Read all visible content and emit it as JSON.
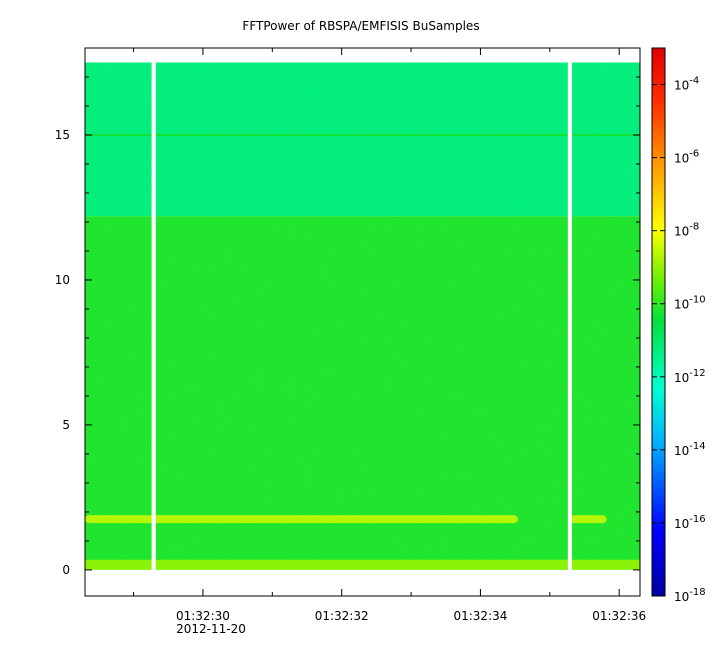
{
  "chart_data": {
    "type": "heatmap",
    "title": "FFTPower of RBSPA/EMFISIS  BuSamples",
    "xlabel": "",
    "ylabel": "",
    "x_tick_labels": [
      "01:32:30",
      "01:32:32",
      "01:32:34",
      "01:32:36"
    ],
    "x_date_label": "2012-11-20",
    "x_range_seconds": [
      "01:32:28.3",
      "01:32:36.3"
    ],
    "y_tick_labels": [
      "0",
      "5",
      "10",
      "15"
    ],
    "y_range": [
      -0.9,
      18.0
    ],
    "y_data_range": [
      0.0,
      17.5
    ],
    "colorbar": {
      "scale": "log",
      "range": [
        1e-18,
        0.001
      ],
      "tick_labels": [
        {
          "base": "10",
          "exp": "-4"
        },
        {
          "base": "10",
          "exp": "-6"
        },
        {
          "base": "10",
          "exp": "-8"
        },
        {
          "base": "10",
          "exp": "-10"
        },
        {
          "base": "10",
          "exp": "-12"
        },
        {
          "base": "10",
          "exp": "-14"
        },
        {
          "base": "10",
          "exp": "-16"
        },
        {
          "base": "10",
          "exp": "-18"
        }
      ],
      "tick_values_log": [
        -4,
        -6,
        -8,
        -10,
        -12,
        -14,
        -16,
        -18
      ]
    },
    "regions": [
      {
        "y_from": 12.2,
        "y_to": 17.5,
        "level_log": -11.3
      },
      {
        "y_from": 0.0,
        "y_to": 12.2,
        "level_log": -10.2
      }
    ],
    "features": [
      {
        "name": "horizontal line",
        "y": 15.0,
        "level_log": -10.3
      },
      {
        "name": "band",
        "y": 1.75,
        "level_log": -8.4
      },
      {
        "name": "floor band",
        "y": 0.1,
        "level_log": -8.8
      }
    ],
    "gaps": [
      {
        "x_from": "01:32:29.26",
        "x_to": "01:32:29.32"
      },
      {
        "x_from": "01:32:35.26",
        "x_to": "01:32:35.32"
      }
    ],
    "grid": false,
    "legend": "none"
  }
}
